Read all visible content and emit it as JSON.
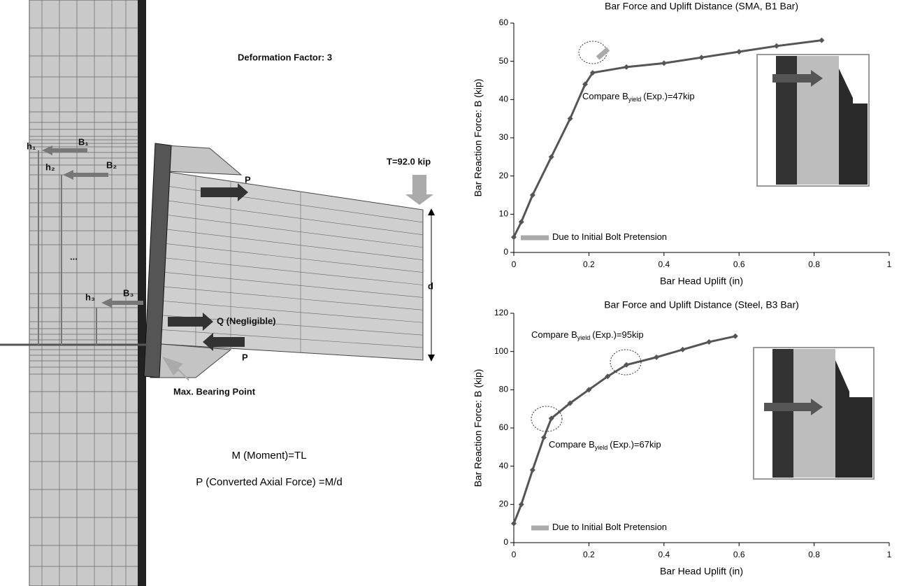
{
  "diagram": {
    "deformation_factor": "Deformation Factor: 3",
    "load": "T=92.0 kip",
    "p_top": "P",
    "p_bottom": "P",
    "depth": "d",
    "q": "Q (Negligible)",
    "bearing": "Max. Bearing Point",
    "moment": "M (Moment)=TL",
    "axial": "P (Converted Axial Force) =M/d",
    "h1": "h₁",
    "b1": "B₁",
    "h2": "h₂",
    "b2": "B₂",
    "dots": "...",
    "h3": "h₃",
    "b3": "B₃"
  },
  "chart_data": [
    {
      "type": "line",
      "title": "Bar Force and Uplift Distance (SMA, B1 Bar)",
      "x_label": "Bar Head Uplift (in)",
      "y_label": "Bar Reaction Force: B (kip)",
      "x": [
        0,
        0.02,
        0.05,
        0.1,
        0.15,
        0.19,
        0.21,
        0.3,
        0.4,
        0.5,
        0.6,
        0.7,
        0.82
      ],
      "values": [
        4,
        8,
        15,
        25,
        35,
        44,
        47,
        48.5,
        49.5,
        51,
        52.5,
        54,
        55.5
      ],
      "color": "#555555",
      "xlim": [
        0,
        1
      ],
      "xticks": [
        0,
        0.2,
        0.4,
        0.6,
        0.8,
        1
      ],
      "ylim": [
        0,
        60
      ],
      "yticks": [
        0,
        10,
        20,
        30,
        40,
        50,
        60
      ],
      "annotations": [
        {
          "text": "Compare B",
          "sub": "yield",
          "rest": "(Exp.)=47kip"
        },
        {
          "text": "Due to Initial Bolt Pretension"
        }
      ]
    },
    {
      "type": "line",
      "title": "Bar Force and Uplift Distance (Steel, B3 Bar)",
      "x_label": "Bar Head Uplift (in)",
      "y_label": "Bar Reaction Force: B (kip)",
      "x": [
        0,
        0.02,
        0.05,
        0.08,
        0.1,
        0.15,
        0.2,
        0.25,
        0.3,
        0.38,
        0.45,
        0.52,
        0.59
      ],
      "values": [
        10,
        20,
        38,
        55,
        65,
        73,
        80,
        87,
        93,
        97,
        101,
        105,
        108
      ],
      "color": "#555555",
      "xlim": [
        0,
        1
      ],
      "xticks": [
        0,
        0.2,
        0.4,
        0.6,
        0.8,
        1
      ],
      "ylim": [
        0,
        120
      ],
      "yticks": [
        0,
        20,
        40,
        60,
        80,
        100,
        120
      ],
      "annotations": [
        {
          "text": "Compare B",
          "sub": "yield",
          "rest": "(Exp.)=95kip"
        },
        {
          "text": "Compare B",
          "sub": "yield",
          "rest": "(Exp.)=67kip"
        },
        {
          "text": "Due to Initial Bolt Pretension"
        }
      ]
    }
  ]
}
